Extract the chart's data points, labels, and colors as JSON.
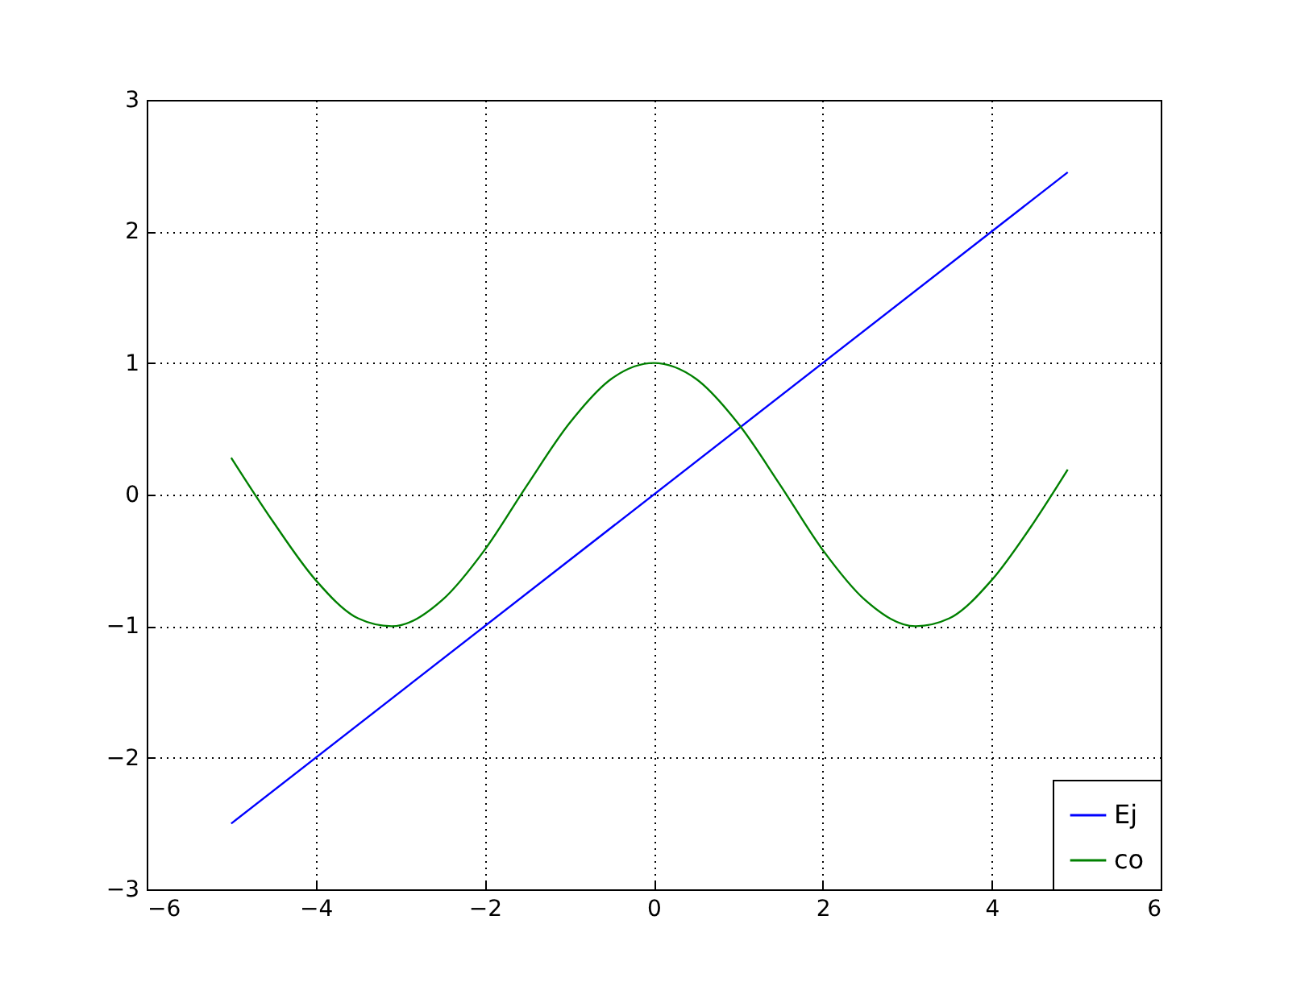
{
  "chart_data": {
    "type": "line",
    "xlim": [
      -6,
      6
    ],
    "ylim": [
      -3,
      3
    ],
    "xticks": [
      -6,
      -4,
      -2,
      0,
      2,
      4,
      6
    ],
    "yticks": [
      -3,
      -2,
      -1,
      0,
      1,
      2,
      3
    ],
    "grid": true,
    "legend": "bottom right",
    "line_style": "solid",
    "series": [
      {
        "name": "Ej",
        "color": "#0000ff",
        "x": [
          -5,
          4.9
        ],
        "values": [
          -2.5,
          2.45
        ]
      },
      {
        "name": "co",
        "color": "#008000",
        "x": [
          -5,
          -4.5,
          -4,
          -3.5,
          -3.1,
          -2.5,
          -2,
          -1.5,
          -1,
          -0.5,
          0,
          0.5,
          1,
          1.5,
          2,
          2.5,
          3.1,
          3.5,
          4,
          4.5,
          4.9
        ],
        "values": [
          0.28,
          -0.21,
          -0.65,
          -0.94,
          -1.0,
          -0.8,
          -0.42,
          0.07,
          0.54,
          0.88,
          1.0,
          0.88,
          0.54,
          0.07,
          -0.42,
          -0.8,
          -1.0,
          -0.94,
          -0.65,
          -0.21,
          0.19
        ]
      }
    ]
  }
}
